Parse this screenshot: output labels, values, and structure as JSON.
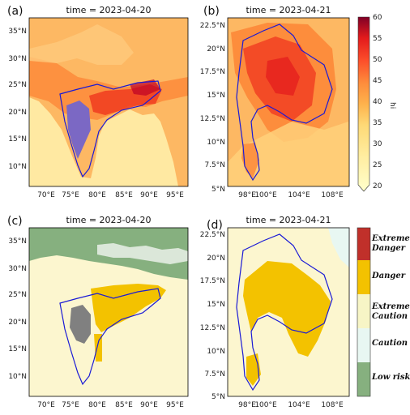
{
  "colors": {
    "ocean_a": "#ffe9a2",
    "land_a": "#fdb863",
    "hot1": "#fd8d3c",
    "hot2": "#f03b20",
    "hot3": "#bd0026",
    "purple": "#7b68c4",
    "ocean_c": "#fcf6cf",
    "danger": "#f3c200",
    "green": "#86b07f",
    "gray": "#808080",
    "border_blue": "#1a1ad6",
    "white": "#ffffff",
    "aqua": "#e8f7f2"
  },
  "chart_data": [
    {
      "panel": "(a)",
      "type": "heatmap",
      "title": "time = 2023-04-20",
      "xticks": [
        "70°E",
        "75°E",
        "80°E",
        "85°E",
        "90°E",
        "95°E"
      ],
      "yticks": [
        "35°N",
        "30°N",
        "25°N",
        "20°N",
        "15°N",
        "10°N"
      ],
      "xlim": [
        66.5,
        98.5
      ],
      "ylim": [
        6,
        38
      ]
    },
    {
      "panel": "(b)",
      "type": "heatmap",
      "title": "time = 2023-04-21",
      "xticks": [
        "98°E",
        "100°E",
        "104°E",
        "108°E"
      ],
      "yticks": [
        "22.5°N",
        "20°N",
        "17.5°N",
        "15°N",
        "12.5°N",
        "10°N",
        "7.5°N",
        "5°N"
      ],
      "xlim": [
        93,
        110
      ],
      "ylim": [
        4.5,
        23.5
      ],
      "colorbar": {
        "label": "hi",
        "ticks": [
          "60",
          "55",
          "50",
          "45",
          "40",
          "35",
          "30",
          "25",
          "20"
        ],
        "range": [
          20,
          60
        ]
      }
    },
    {
      "panel": "(c)",
      "type": "heatmap",
      "title": "time = 2023-04-20",
      "xticks": [
        "70°E",
        "75°E",
        "80°E",
        "85°E",
        "90°E",
        "95°E"
      ],
      "yticks": [
        "35°N",
        "30°N",
        "25°N",
        "20°N",
        "15°N",
        "10°N"
      ],
      "xlim": [
        66.5,
        98.5
      ],
      "ylim": [
        6,
        38
      ]
    },
    {
      "panel": "(d)",
      "type": "heatmap",
      "title": "time = 2023-04-21",
      "xticks": [
        "98°E",
        "100°E",
        "104°E",
        "108°E"
      ],
      "yticks": [
        "22.5°N",
        "20°N",
        "17.5°N",
        "15°N",
        "12.5°N",
        "10°N",
        "7.5°N",
        "5°N"
      ],
      "xlim": [
        93,
        110
      ],
      "ylim": [
        4.5,
        23.5
      ],
      "legend": [
        "Extreme Danger",
        "Danger",
        "Extreme Caution",
        "Caution",
        "Low risk"
      ]
    }
  ]
}
